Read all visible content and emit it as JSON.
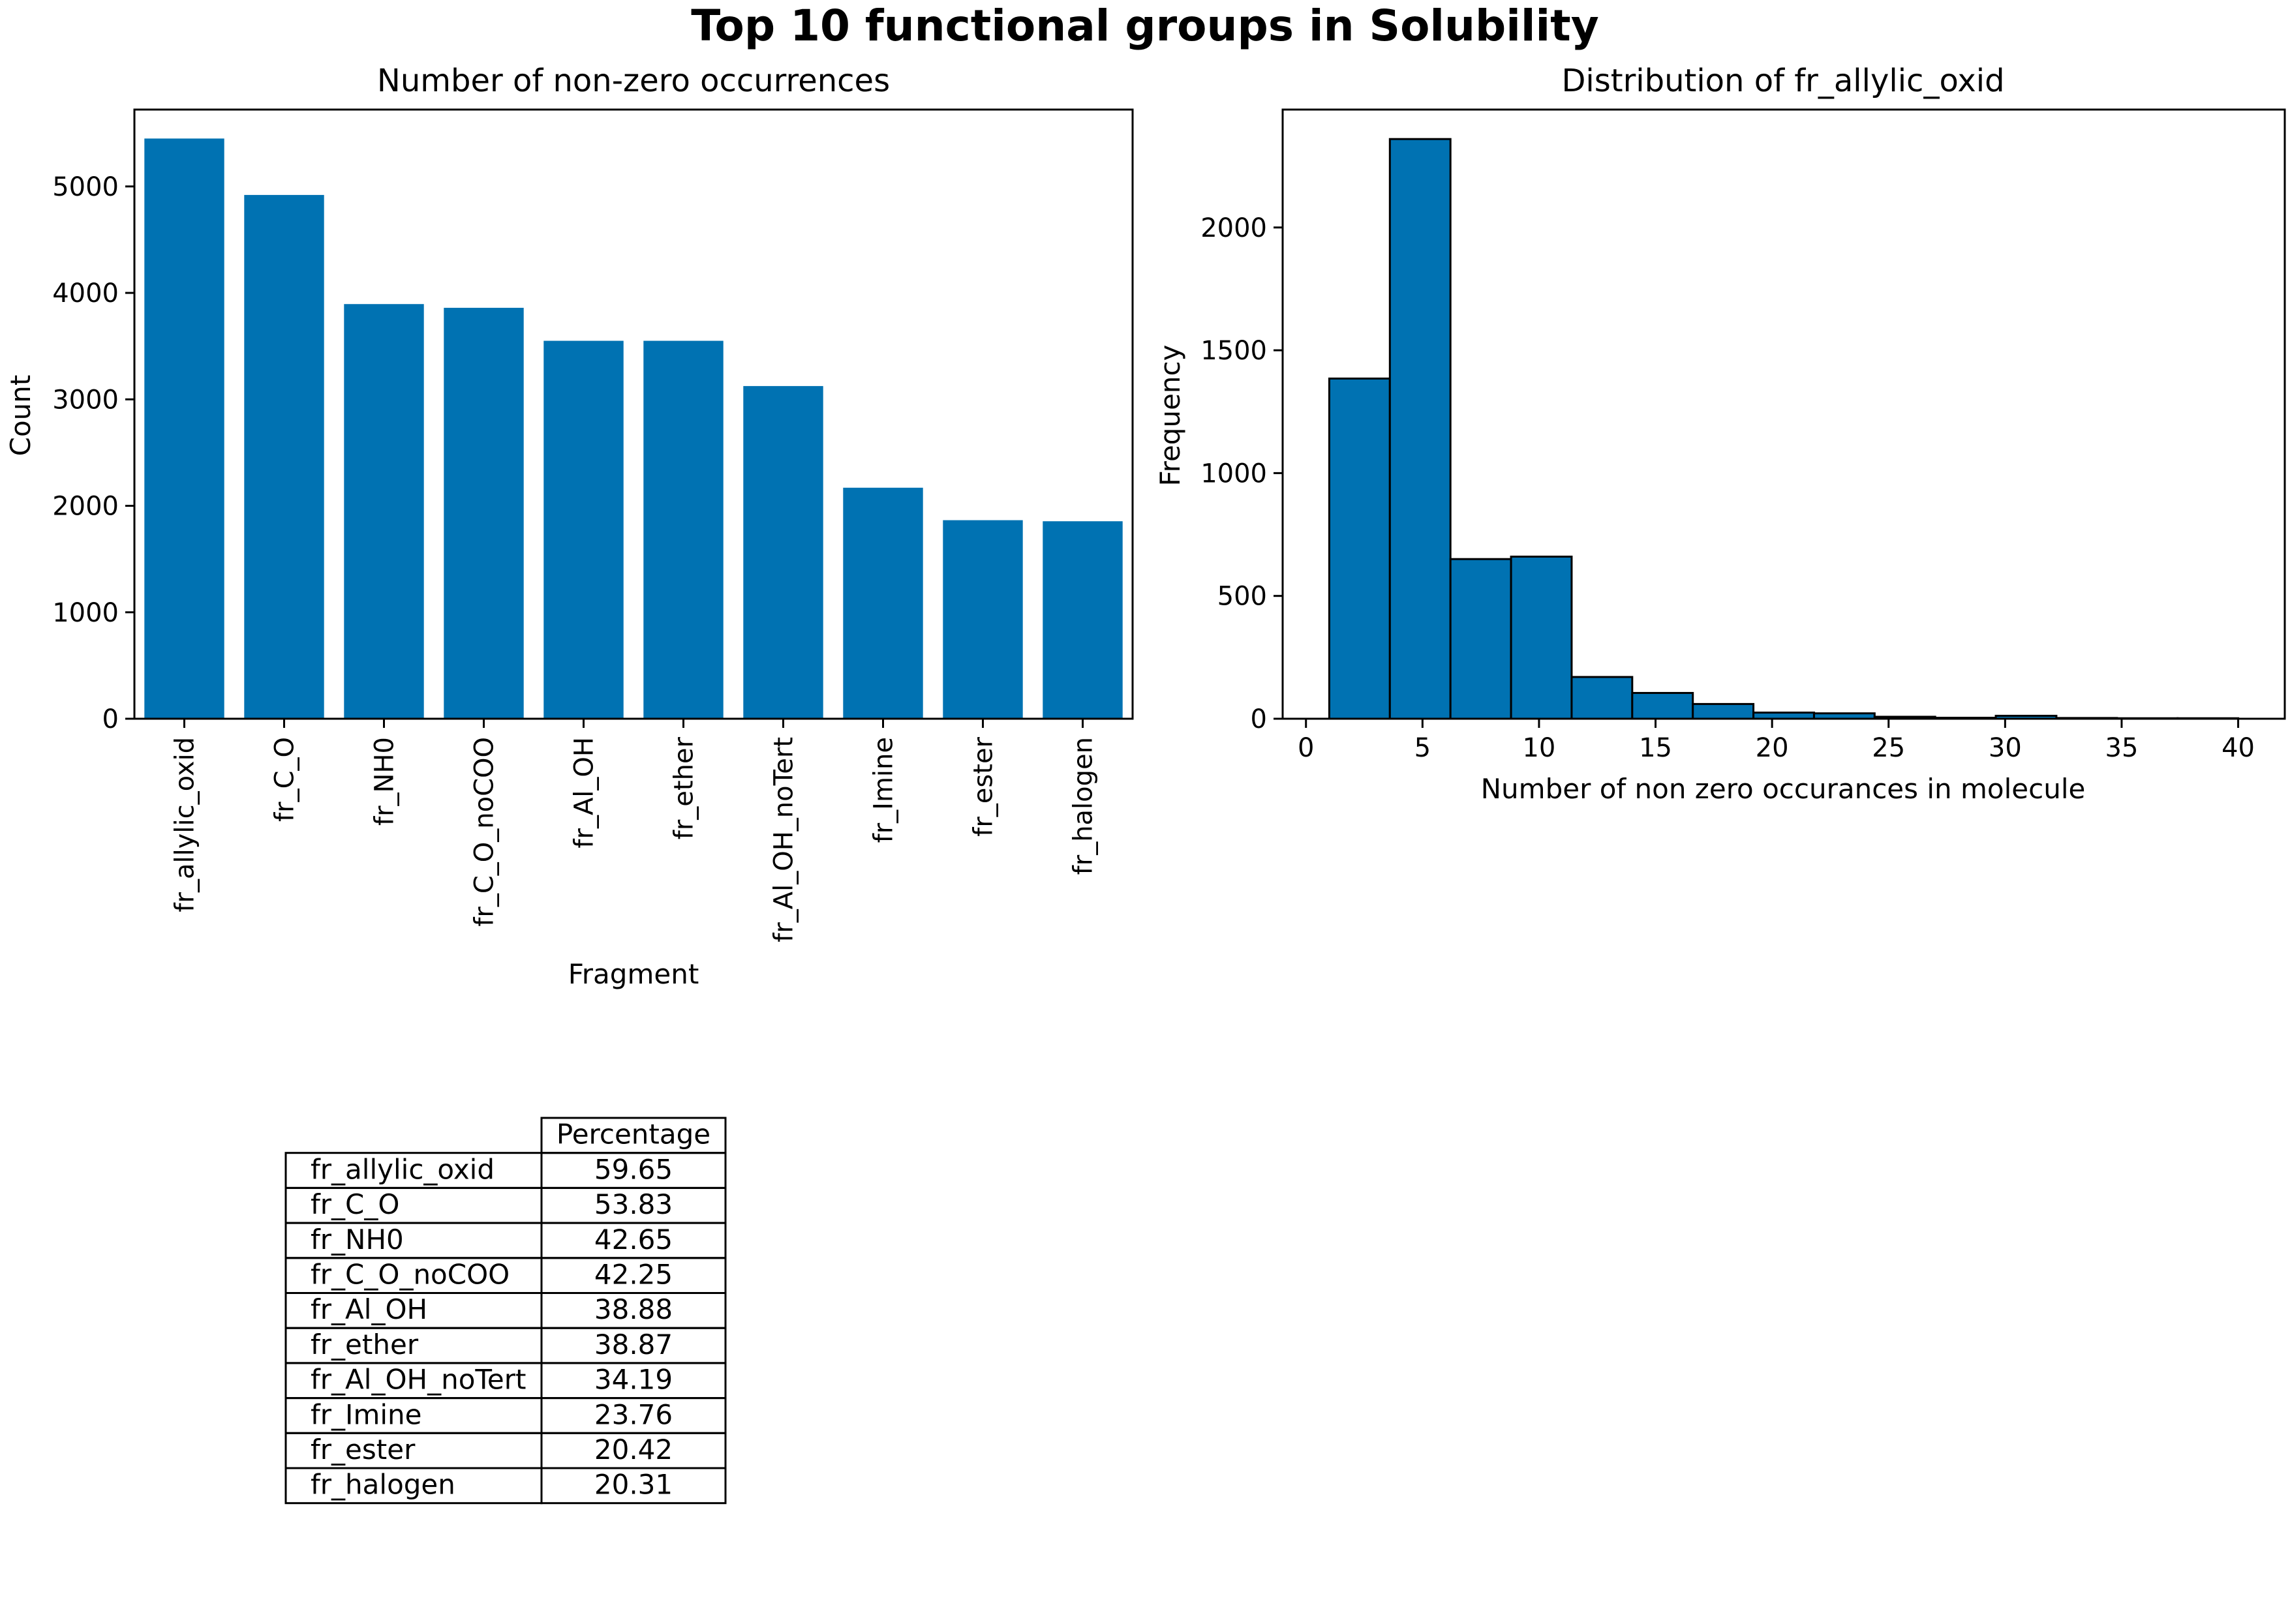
{
  "figure": {
    "suptitle": "Top 10 functional groups in Solubility",
    "bar_color": "#0072b2",
    "edge_color": "#000000"
  },
  "chart_data": [
    {
      "type": "bar",
      "title": "Number of non-zero occurrences",
      "xlabel": "Fragment",
      "ylabel": "Count",
      "ylim": [
        0,
        5722
      ],
      "yticks": [
        0,
        1000,
        2000,
        3000,
        4000,
        5000
      ],
      "categories": [
        "fr_allylic_oxid",
        "fr_C_O",
        "fr_NH0",
        "fr_C_O_noCOO",
        "fr_Al_OH",
        "fr_ether",
        "fr_Al_OH_noTert",
        "fr_Imine",
        "fr_ester",
        "fr_halogen"
      ],
      "values": [
        5450,
        4920,
        3895,
        3860,
        3550,
        3550,
        3125,
        2170,
        1865,
        1855
      ],
      "grid": false,
      "legend": "none"
    },
    {
      "type": "bar",
      "subtype": "histogram",
      "title": "Distribution of fr_allylic_oxid",
      "xlabel": "Number of non zero occurances in molecule",
      "ylabel": "Frequency",
      "xlim": [
        -1.0,
        42.0
      ],
      "ylim": [
        0,
        2480
      ],
      "xticks": [
        0,
        5,
        10,
        15,
        20,
        25,
        30,
        35,
        40
      ],
      "yticks": [
        0,
        500,
        1000,
        1500,
        2000
      ],
      "bin_edges": [
        1.0,
        3.6,
        6.2,
        8.8,
        11.4,
        14.0,
        16.6,
        19.2,
        21.8,
        24.4,
        27.0,
        29.6,
        32.2,
        34.8,
        37.4,
        40.0
      ],
      "values": [
        1385,
        2360,
        650,
        660,
        170,
        105,
        60,
        25,
        22,
        8,
        4,
        12,
        3,
        2,
        2
      ],
      "grid": false,
      "legend": "none"
    },
    {
      "type": "table",
      "col_header": "Percentage",
      "rows": [
        {
          "label": "fr_allylic_oxid",
          "value": "59.65"
        },
        {
          "label": "fr_C_O",
          "value": "53.83"
        },
        {
          "label": "fr_NH0",
          "value": "42.65"
        },
        {
          "label": "fr_C_O_noCOO",
          "value": "42.25"
        },
        {
          "label": "fr_Al_OH",
          "value": "38.88"
        },
        {
          "label": "fr_ether",
          "value": "38.87"
        },
        {
          "label": "fr_Al_OH_noTert",
          "value": "34.19"
        },
        {
          "label": "fr_Imine",
          "value": "23.76"
        },
        {
          "label": "fr_ester",
          "value": "20.42"
        },
        {
          "label": "fr_halogen",
          "value": "20.31"
        }
      ]
    }
  ]
}
